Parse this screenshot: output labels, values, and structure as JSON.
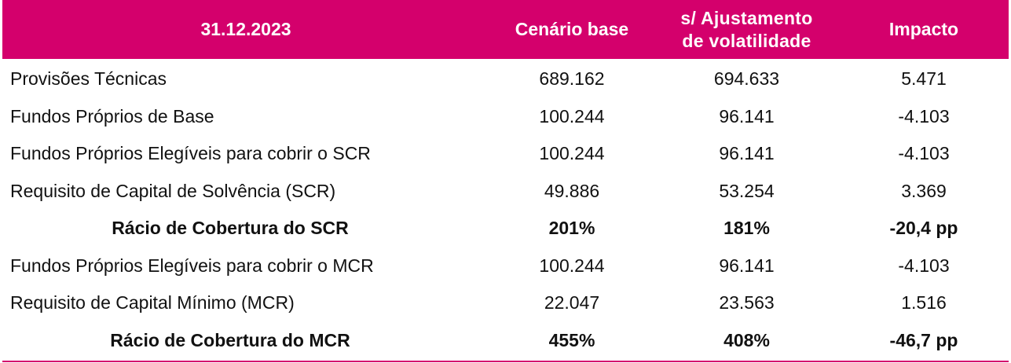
{
  "header": {
    "date": "31.12.2023",
    "col_base": "Cenário base",
    "col_vol_line1": "s/ Ajustamento",
    "col_vol_line2": "de volatilidade",
    "col_impact": "Impacto"
  },
  "rows": [
    {
      "label": "Provisões Técnicas",
      "base": "689.162",
      "vol": "694.633",
      "impact": "5.471",
      "bold": false
    },
    {
      "label": "Fundos Próprios de Base",
      "base": "100.244",
      "vol": "96.141",
      "impact": "-4.103",
      "bold": false
    },
    {
      "label": "Fundos Próprios Elegíveis para cobrir o SCR",
      "base": "100.244",
      "vol": "96.141",
      "impact": "-4.103",
      "bold": false
    },
    {
      "label": "Requisito de Capital de Solvência (SCR)",
      "base": "49.886",
      "vol": "53.254",
      "impact": "3.369",
      "bold": false
    },
    {
      "label": "Rácio de Cobertura do SCR",
      "base": "201%",
      "vol": "181%",
      "impact": "-20,4 pp",
      "bold": true
    },
    {
      "label": "Fundos Próprios Elegíveis para cobrir o MCR",
      "base": "100.244",
      "vol": "96.141",
      "impact": "-4.103",
      "bold": false
    },
    {
      "label": "Requisito de Capital Mínimo (MCR)",
      "base": "22.047",
      "vol": "23.563",
      "impact": "1.516",
      "bold": false
    },
    {
      "label": "Rácio de Cobertura do MCR",
      "base": "455%",
      "vol": "408%",
      "impact": "-46,7 pp",
      "bold": true
    }
  ],
  "colors": {
    "accent": "#d4006c",
    "header_text": "#ffffff",
    "body_text": "#111111"
  }
}
